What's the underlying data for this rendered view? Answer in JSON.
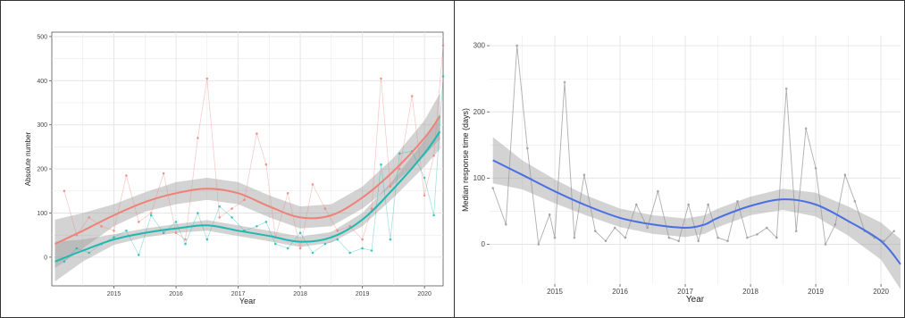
{
  "colors": {
    "panel_bg": "#ffffff",
    "plot_bg": "#ffffff",
    "grid": "#e6e6e6",
    "border": "#333333",
    "red_series": "#f08078",
    "teal_series": "#1fb8b0",
    "blue_fit": "#4a6fe3",
    "grey_series": "#9a9a9a",
    "band": "#9e9e9e"
  },
  "chart_data": [
    {
      "type": "line",
      "title": "",
      "xlabel": "Year",
      "ylabel": "Absolute number",
      "xlim": [
        2014.0,
        2020.3
      ],
      "ylim": [
        -65,
        510
      ],
      "x_ticks": [
        2015,
        2016,
        2017,
        2018,
        2019,
        2020
      ],
      "x_tick_labels": [
        "2015",
        "2016",
        "2017",
        "2018",
        "2019",
        "2020"
      ],
      "y_ticks": [
        0,
        100,
        200,
        300,
        400,
        500
      ],
      "y_tick_labels": [
        "0",
        "100",
        "200",
        "300",
        "400",
        "500"
      ],
      "grid": true,
      "legend": "none",
      "series": [
        {
          "color": "#f08078",
          "raw_x": [
            2014.2,
            2014.4,
            2014.6,
            2014.8,
            2015.0,
            2015.2,
            2015.4,
            2015.6,
            2015.8,
            2016.0,
            2016.15,
            2016.35,
            2016.5,
            2016.7,
            2016.9,
            2017.1,
            2017.3,
            2017.45,
            2017.6,
            2017.8,
            2018.0,
            2018.2,
            2018.4,
            2018.6,
            2018.8,
            2019.0,
            2019.15,
            2019.3,
            2019.45,
            2019.6,
            2019.8,
            2020.0,
            2020.15,
            2020.3
          ],
          "raw_y": [
            150,
            50,
            90,
            70,
            60,
            185,
            80,
            100,
            190,
            55,
            40,
            270,
            405,
            90,
            110,
            130,
            280,
            210,
            45,
            145,
            20,
            165,
            110,
            60,
            70,
            40,
            110,
            405,
            160,
            200,
            365,
            140,
            230,
            480
          ],
          "fit_x": [
            2014.05,
            2014.5,
            2015.0,
            2015.5,
            2016.0,
            2016.5,
            2017.0,
            2017.5,
            2018.0,
            2018.5,
            2019.0,
            2019.5,
            2020.0,
            2020.25
          ],
          "fit_y": [
            30,
            60,
            95,
            125,
            145,
            155,
            145,
            115,
            90,
            95,
            135,
            195,
            270,
            320
          ],
          "band_half_width": [
            55,
            40,
            25,
            22,
            25,
            25,
            25,
            25,
            25,
            25,
            25,
            30,
            40,
            52
          ]
        },
        {
          "color": "#1fb8b0",
          "raw_x": [
            2014.2,
            2014.4,
            2014.6,
            2014.8,
            2015.0,
            2015.2,
            2015.4,
            2015.6,
            2015.8,
            2016.0,
            2016.15,
            2016.35,
            2016.5,
            2016.7,
            2016.9,
            2017.1,
            2017.3,
            2017.45,
            2017.6,
            2017.8,
            2018.0,
            2018.2,
            2018.4,
            2018.6,
            2018.8,
            2019.0,
            2019.15,
            2019.3,
            2019.45,
            2019.6,
            2019.8,
            2020.0,
            2020.15,
            2020.3
          ],
          "raw_y": [
            -10,
            20,
            10,
            30,
            45,
            60,
            5,
            95,
            55,
            80,
            30,
            100,
            40,
            115,
            90,
            60,
            70,
            80,
            30,
            20,
            55,
            10,
            30,
            40,
            10,
            20,
            15,
            210,
            40,
            235,
            240,
            180,
            95,
            410
          ],
          "fit_x": [
            2014.05,
            2014.5,
            2015.0,
            2015.5,
            2016.0,
            2016.5,
            2017.0,
            2017.5,
            2018.0,
            2018.5,
            2019.0,
            2019.5,
            2020.0,
            2020.25
          ],
          "fit_y": [
            -10,
            15,
            40,
            55,
            65,
            72,
            60,
            48,
            35,
            45,
            85,
            155,
            235,
            285
          ],
          "band_half_width": [
            45,
            25,
            12,
            10,
            10,
            12,
            12,
            12,
            12,
            12,
            15,
            20,
            30,
            40
          ]
        }
      ]
    },
    {
      "type": "line",
      "title": "",
      "xlabel": "Year",
      "ylabel": "Median response time (days)",
      "xlim": [
        2014.0,
        2020.3
      ],
      "ylim": [
        -60,
        315
      ],
      "x_ticks": [
        2015,
        2016,
        2017,
        2018,
        2019,
        2020
      ],
      "x_tick_labels": [
        "2015",
        "2016",
        "2017",
        "2018",
        "2019",
        "2020"
      ],
      "y_ticks": [
        0,
        100,
        200,
        300
      ],
      "y_tick_labels": [
        "0",
        "100",
        "200",
        "300"
      ],
      "grid": true,
      "legend": "none",
      "series": [
        {
          "color": "#9a9a9a",
          "raw_x": [
            2014.05,
            2014.25,
            2014.42,
            2014.58,
            2014.75,
            2014.92,
            2015.0,
            2015.15,
            2015.3,
            2015.45,
            2015.62,
            2015.78,
            2015.92,
            2016.08,
            2016.25,
            2016.42,
            2016.58,
            2016.75,
            2016.9,
            2017.05,
            2017.2,
            2017.35,
            2017.5,
            2017.65,
            2017.8,
            2017.95,
            2018.1,
            2018.25,
            2018.4,
            2018.55,
            2018.7,
            2018.85,
            2019.0,
            2019.15,
            2019.3,
            2019.45,
            2019.6,
            2019.75,
            2019.9,
            2020.05,
            2020.2
          ],
          "raw_y": [
            85,
            30,
            300,
            145,
            0,
            45,
            10,
            245,
            10,
            105,
            20,
            5,
            25,
            10,
            60,
            25,
            80,
            10,
            5,
            60,
            5,
            60,
            10,
            5,
            65,
            10,
            15,
            25,
            10,
            235,
            20,
            175,
            115,
            0,
            30,
            105,
            65,
            20,
            10,
            5,
            20
          ],
          "fit_x": [
            2014.05,
            2014.5,
            2015.0,
            2015.5,
            2016.0,
            2016.5,
            2017.0,
            2017.3,
            2017.5,
            2018.0,
            2018.5,
            2019.0,
            2019.5,
            2020.0,
            2020.3
          ],
          "fit_y": [
            127,
            105,
            80,
            58,
            40,
            30,
            25,
            30,
            40,
            58,
            68,
            60,
            35,
            5,
            -30
          ],
          "band_half_width": [
            35,
            22,
            18,
            15,
            14,
            14,
            14,
            14,
            14,
            14,
            16,
            18,
            22,
            28,
            38
          ]
        }
      ]
    }
  ]
}
